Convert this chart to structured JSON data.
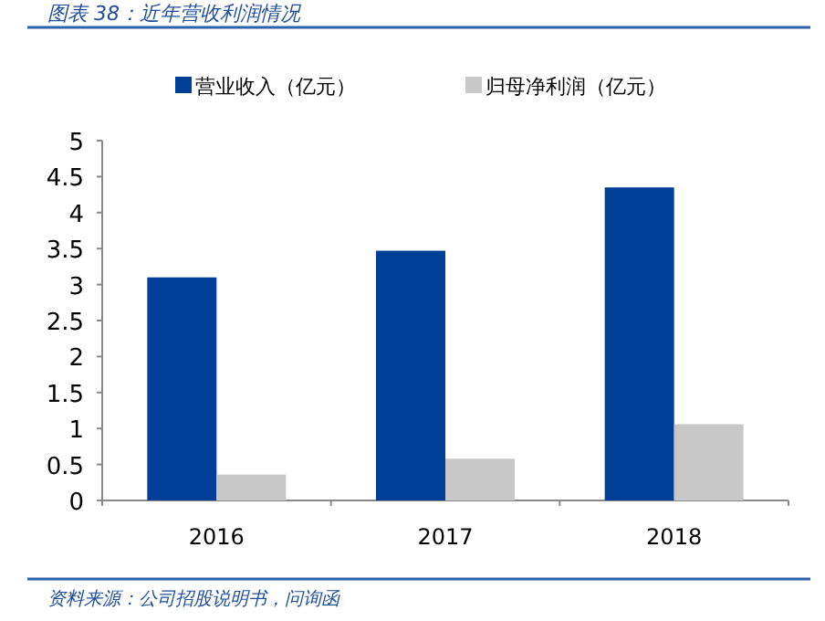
{
  "chart_data": {
    "type": "bar",
    "title": "图表 38：近年营收利润情况",
    "categories": [
      "2016",
      "2017",
      "2018"
    ],
    "series": [
      {
        "name": "营业收入（亿元）",
        "color": "#003f98",
        "values": [
          3.1,
          3.47,
          4.35
        ]
      },
      {
        "name": "归母净利润（亿元）",
        "color": "#c8c8c8",
        "values": [
          0.36,
          0.58,
          1.06
        ]
      }
    ],
    "ylim": [
      0,
      5
    ],
    "yticks": [
      0,
      0.5,
      1,
      1.5,
      2,
      2.5,
      3,
      3.5,
      4,
      4.5,
      5
    ],
    "grid": false,
    "legend": "top",
    "annotations": [
      "资料来源：公司招股说明书，问询函"
    ]
  }
}
